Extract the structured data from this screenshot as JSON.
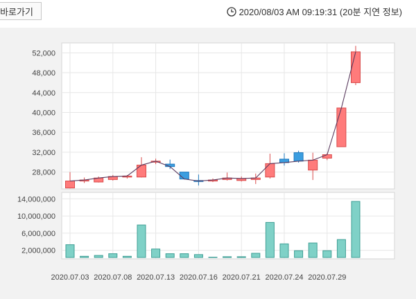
{
  "header": {
    "back_label": "바로가기",
    "timestamp": "2020/08/03 AM 09:19:31 (20분 지연 정보)",
    "clock_icon": "clock-icon"
  },
  "colors": {
    "up": "#ff7b7b",
    "up_stroke": "#d94a4a",
    "down": "#3b9ee0",
    "down_stroke": "#1f78bd",
    "volume": "#7fd1c7",
    "volume_stroke": "#3f9f95",
    "line": "#5a3a5e"
  },
  "chart_data": [
    {
      "type": "candlestick",
      "title": "",
      "ylim": [
        24600,
        54000
      ],
      "yticks": [
        "52,000",
        "48,000",
        "44,000",
        "40,000",
        "36,000",
        "32,000",
        "28,000"
      ],
      "ytick_values": [
        52000,
        48000,
        44000,
        40000,
        36000,
        32000,
        28000
      ],
      "candles": [
        {
          "open": 24800,
          "high": 28000,
          "low": 24700,
          "close": 26200
        },
        {
          "open": 26300,
          "high": 26900,
          "low": 25800,
          "close": 26400
        },
        {
          "open": 26000,
          "high": 27100,
          "low": 25900,
          "close": 26800
        },
        {
          "open": 26500,
          "high": 27400,
          "low": 26300,
          "close": 27100
        },
        {
          "open": 27000,
          "high": 27400,
          "low": 26700,
          "close": 27200
        },
        {
          "open": 27000,
          "high": 31000,
          "low": 26900,
          "close": 29400
        },
        {
          "open": 30000,
          "high": 30700,
          "low": 29600,
          "close": 30200
        },
        {
          "open": 29600,
          "high": 30500,
          "low": 28600,
          "close": 29100
        },
        {
          "open": 28000,
          "high": 28000,
          "low": 26500,
          "close": 26600
        },
        {
          "open": 26300,
          "high": 27500,
          "low": 25300,
          "close": 26200
        },
        {
          "open": 26300,
          "high": 26700,
          "low": 26000,
          "close": 26400
        },
        {
          "open": 26500,
          "high": 27900,
          "low": 26300,
          "close": 26800
        },
        {
          "open": 26300,
          "high": 27100,
          "low": 26100,
          "close": 26700
        },
        {
          "open": 26500,
          "high": 27700,
          "low": 25600,
          "close": 26800
        },
        {
          "open": 27000,
          "high": 31700,
          "low": 26700,
          "close": 29700
        },
        {
          "open": 30600,
          "high": 31800,
          "low": 29300,
          "close": 29900
        },
        {
          "open": 31900,
          "high": 32300,
          "low": 29900,
          "close": 30200
        },
        {
          "open": 28400,
          "high": 31900,
          "low": 26400,
          "close": 30400
        },
        {
          "open": 30800,
          "high": 31800,
          "low": 30400,
          "close": 31500
        },
        {
          "open": 33100,
          "high": 40900,
          "low": 33100,
          "close": 40900
        },
        {
          "open": 46000,
          "high": 53400,
          "low": 45500,
          "close": 52200
        }
      ],
      "close_line": [
        26200,
        26400,
        26800,
        27100,
        27200,
        29400,
        30200,
        29100,
        26600,
        26200,
        26400,
        26800,
        26700,
        26800,
        29700,
        29900,
        30200,
        30400,
        31500,
        40900,
        52200
      ]
    },
    {
      "type": "bar",
      "title": "",
      "ylim": [
        0,
        15500000
      ],
      "yticks": [
        "14,000,000",
        "10,000,000",
        "6,000,000",
        "2,000,000"
      ],
      "ytick_values": [
        14000000,
        10000000,
        6000000,
        2000000
      ],
      "values": [
        3300000,
        600000,
        800000,
        1200000,
        600000,
        7900000,
        2300000,
        1200000,
        1200000,
        1000000,
        400000,
        500000,
        500000,
        1300000,
        8500000,
        3500000,
        1900000,
        3700000,
        1900000,
        4500000,
        13400000
      ],
      "x_tick_labels": [
        "2020.07.03",
        "2020.07.08",
        "2020.07.13",
        "2020.07.16",
        "2020.07.21",
        "2020.07.24",
        "2020.07.29"
      ],
      "x_tick_index": [
        0,
        3,
        6,
        9,
        12,
        15,
        18
      ]
    }
  ]
}
